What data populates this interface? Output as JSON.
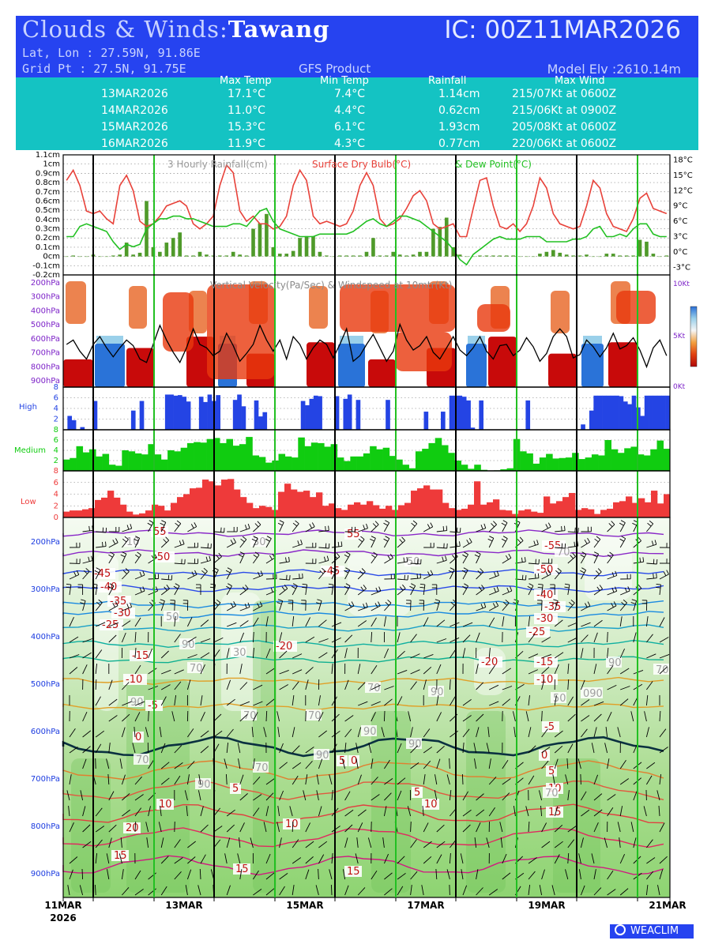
{
  "header": {
    "title_prefix": "Clouds & Winds:",
    "location": "Tawang",
    "initial_condition": "IC: 00Z11MAR2026",
    "latlon": "Lat, Lon : 27.59N, 91.86E",
    "gridpt": "Grid Pt  : 27.5N, 91.75E",
    "product": "GFS Product",
    "model_elevation": "Model Elv :2610.14m"
  },
  "summary": {
    "headers": [
      "Max Temp",
      "Min Temp",
      "Rainfall",
      "Max Wind"
    ],
    "rows": [
      {
        "date": "13MAR2026",
        "max_temp": "17.1°C",
        "min_temp": "7.4°C",
        "rain": "1.14cm",
        "wind": "215/07Kt at 0600Z"
      },
      {
        "date": "14MAR2026",
        "max_temp": "11.0°C",
        "min_temp": "4.4°C",
        "rain": "0.62cm",
        "wind": "215/06Kt at 0900Z"
      },
      {
        "date": "15MAR2026",
        "max_temp": "15.3°C",
        "min_temp": "6.1°C",
        "rain": "1.93cm",
        "wind": "205/08Kt at 0600Z"
      },
      {
        "date": "16MAR2026",
        "max_temp": "11.9°C",
        "min_temp": "4.3°C",
        "rain": "0.77cm",
        "wind": "220/06Kt at 0600Z"
      }
    ]
  },
  "colors": {
    "header_bg": "#2643f0",
    "summary_bg": "#14c3c3",
    "rain_bar": "#4f9a2a",
    "dry_bulb": "#e8423a",
    "dew_point": "#22c022",
    "high": "#2444e4",
    "medium": "#10cc10",
    "low": "#ee3a3a",
    "grid_day": "#000000",
    "grid_noon": "#22c022"
  },
  "chart_data": [
    {
      "type": "bar",
      "title": "3 Hourly Rainfall(cm)",
      "series_titles": [
        "Surface Dry Bulb(°C)",
        "& Dew Point(°C)"
      ],
      "yleft_ticks": [
        "1.1cm",
        "1cm",
        "0.9cm",
        "0.8cm",
        "0.7cm",
        "0.6cm",
        "0.5cm",
        "0.4cm",
        "0.3cm",
        "0.2cm",
        "0.1cm",
        "0cm",
        "-0.1cm",
        "-0.2cm"
      ],
      "yright_ticks": [
        "18°C",
        "15°C",
        "12°C",
        "9°C",
        "6°C",
        "3°C",
        "0°C",
        "-3°C"
      ],
      "ylim_rain": [
        -0.2,
        1.1
      ],
      "ylim_temp": [
        -4.5,
        19
      ],
      "rain": [
        0,
        0.01,
        0,
        0,
        0.02,
        0,
        0,
        0.01,
        0.02,
        0.15,
        0.02,
        0.04,
        0.6,
        0.1,
        0.05,
        0.15,
        0.2,
        0.26,
        0.01,
        0.01,
        0.05,
        0.02,
        0.01,
        0.01,
        0.01,
        0.05,
        0.02,
        0.01,
        0.3,
        0.36,
        0.46,
        0.1,
        0.03,
        0.03,
        0.06,
        0.2,
        0.22,
        0.22,
        0.05,
        0.01,
        0,
        0.01,
        0.01,
        0.01,
        0.01,
        0.05,
        0.2,
        0.01,
        0.01,
        0.05,
        0.02,
        0.01,
        0.02,
        0.05,
        0.05,
        0.3,
        0.32,
        0.42,
        0.1,
        0.02,
        0,
        0,
        0.01,
        0.01,
        0.01,
        0.01,
        0.01,
        0.01,
        0,
        0,
        0,
        0.03,
        0.05,
        0.07,
        0.04,
        0.02,
        0.01,
        0.01,
        0.02,
        0,
        0,
        0.03,
        0.03,
        0.01,
        0.01,
        0.01,
        0.18,
        0.16,
        0.03,
        0,
        0.01
      ],
      "dry_bulb": [
        14,
        16,
        13,
        8,
        7.5,
        8,
        6.5,
        5.5,
        13,
        15,
        12,
        6,
        5,
        5.5,
        7,
        9,
        9.5,
        10,
        9,
        5.5,
        4.5,
        5.5,
        7,
        13,
        17,
        15.5,
        8,
        6,
        7,
        5.5,
        5.5,
        4.5,
        5,
        7,
        13,
        16,
        14,
        7,
        5.5,
        6,
        5.5,
        5,
        5.5,
        8,
        13,
        15.5,
        13,
        6.5,
        5,
        5.5,
        6.5,
        8.5,
        11,
        12,
        10,
        5.5,
        4.5,
        5,
        5.5,
        3,
        3,
        8.5,
        14,
        14.5,
        9,
        5,
        4.5,
        5.5,
        4,
        5.5,
        9,
        14.5,
        12.5,
        7.5,
        5.5,
        5,
        4.5,
        5,
        9,
        14,
        12.5,
        7.5,
        5,
        4.5,
        4,
        6.5,
        10.5,
        11.5,
        8.5,
        8,
        7.5
      ],
      "dew_point": [
        3,
        3,
        5,
        5.5,
        5,
        4.5,
        4,
        2,
        0.5,
        1.5,
        1,
        1.5,
        4.5,
        5.5,
        6.5,
        6.5,
        7,
        7,
        6.5,
        6.5,
        6,
        5.5,
        5,
        5,
        5,
        5.5,
        5.5,
        5,
        6.5,
        8,
        8.5,
        6,
        4.5,
        4,
        3.5,
        3,
        3,
        3,
        3.5,
        3.5,
        3.5,
        3.5,
        3.5,
        4,
        5,
        6,
        6.5,
        5.5,
        5,
        6,
        7,
        7,
        6.5,
        6,
        5,
        4,
        3,
        2,
        0.5,
        -1.5,
        -2.5,
        -0.5,
        0.5,
        1.5,
        2.5,
        3,
        2.5,
        2.5,
        2.5,
        3,
        3,
        3,
        2,
        2,
        2,
        2,
        2.5,
        2.5,
        3,
        4.5,
        5,
        3,
        3,
        3.5,
        3,
        4.5,
        5.5,
        5.5,
        3.5,
        3,
        3
      ]
    },
    {
      "type": "heatmap",
      "title": "Vertical Velocity(Pa/Sec) & Windspeed at 10mtr(Kt)",
      "y_ticks": [
        "200hPa",
        "300hPa",
        "400hPa",
        "500hPa",
        "600hPa",
        "700hPa",
        "800hPa",
        "900hPa"
      ],
      "yright_ticks": [
        "10Kt",
        "5Kt",
        "0Kt"
      ],
      "windspeed_kt": [
        3.8,
        4.2,
        3.2,
        2.5,
        3.8,
        4.5,
        3.5,
        2.7,
        3.5,
        4.2,
        3.7,
        2.5,
        2.2,
        3.8,
        5.5,
        4.2,
        3.1,
        2.2,
        3.5,
        5.2,
        3.8,
        3.5,
        2.8,
        3.2,
        4.8,
        3.7,
        2.3,
        3,
        3.8,
        5.5,
        4.2,
        3.2,
        4.2,
        2.5,
        4.5,
        3.8,
        2.5,
        3.5,
        4.2,
        3.8,
        2.6,
        3.8,
        5.2,
        2.3,
        2.8,
        3.8,
        4.7,
        3.5,
        2.3,
        3.2,
        5.6,
        4.2,
        3.3,
        3.7,
        4.5,
        3.1,
        2.5,
        3.5,
        4.5,
        3.3,
        2.8,
        3.5,
        4.5,
        3.2,
        2.5,
        3.7,
        3.8,
        2.8,
        3.3,
        4.4,
        3.6,
        2.3,
        3,
        4.5,
        5.2,
        4.5,
        2.6,
        2.9,
        4.2,
        3.6,
        2.7,
        3.5,
        4.8,
        3.4,
        3.7,
        4.4,
        3.3,
        1.8,
        3.5,
        4.2,
        2.8
      ]
    },
    {
      "type": "bar",
      "title": "High",
      "ylim": [
        0,
        8
      ],
      "y_ticks": [
        "8",
        "6",
        "4",
        "2"
      ],
      "values": [
        0,
        2.6,
        1.8,
        0,
        0.5,
        0,
        0,
        5.4,
        0,
        0,
        0,
        0,
        0,
        0,
        0,
        0,
        3.6,
        0,
        5.4,
        0,
        0,
        0,
        0,
        0,
        6.6,
        6.6,
        6.4,
        6.5,
        6.2,
        5.3,
        0,
        0,
        6.2,
        5.2,
        6.6,
        5.4,
        6.5,
        0,
        0,
        0,
        5.6,
        6.6,
        4.4,
        0,
        0,
        5.5,
        2.5,
        3.3,
        0,
        0,
        0,
        0,
        0,
        0,
        0,
        0,
        5.4,
        4.6,
        5.8,
        6.4,
        6.3,
        0,
        0,
        0,
        6.3,
        0,
        5.8,
        6.6,
        0,
        5.6,
        0,
        0,
        0,
        0,
        0,
        0,
        5.6,
        0,
        0,
        0,
        0,
        0,
        0,
        0,
        0,
        3.4,
        0,
        0,
        0,
        3.4,
        0,
        6.4,
        6.4,
        6.4,
        6.2,
        5.5,
        0.4,
        0,
        5.5,
        0,
        0,
        0,
        0,
        0,
        0,
        0,
        0,
        0,
        0,
        5.5,
        0,
        0,
        0,
        0,
        0,
        0,
        0,
        0,
        0,
        0,
        0,
        0,
        1,
        0,
        3.6,
        6.4,
        6.4,
        6.4,
        6.4,
        6.4,
        6.4,
        6.3,
        5.3,
        4.8,
        6.4,
        4.2,
        2.6,
        6.4,
        6.4,
        6.4,
        6.4,
        6.4,
        6.4
      ]
    },
    {
      "type": "bar",
      "title": "Medium",
      "ylim": [
        0,
        8
      ],
      "y_ticks": [
        "8",
        "6",
        "4",
        "2"
      ],
      "values": [
        2.2,
        2.5,
        4.8,
        3.6,
        4.2,
        2.8,
        3.3,
        1.2,
        1,
        4,
        3.8,
        3.4,
        3.2,
        5.2,
        3.2,
        2.2,
        4,
        3.8,
        4.5,
        5.4,
        5.6,
        5.5,
        6.2,
        6.4,
        5.4,
        6.2,
        4.9,
        5.2,
        6.6,
        3,
        2.7,
        1.6,
        2,
        3.3,
        2.8,
        2.6,
        6.5,
        4.8,
        5.5,
        5.4,
        4.7,
        5.2,
        2.6,
        1.9,
        2.8,
        2.8,
        3.4,
        4.8,
        4.2,
        4.5,
        2.9,
        2.2,
        1.2,
        0.5,
        3.8,
        4.3,
        5.4,
        6.4,
        5,
        3.5,
        2,
        1.2,
        0.4,
        1.2,
        0.2,
        0,
        0.1,
        0.3,
        0.5,
        6.2,
        3.8,
        3.4,
        1.4,
        2.6,
        3.3,
        2.4,
        2.5,
        2.6,
        3.5,
        2.3,
        2.6,
        3.2,
        3,
        6,
        4.2,
        3.5,
        4.4,
        4.7,
        3.2,
        3,
        4.2,
        5.9,
        4.3
      ]
    },
    {
      "type": "bar",
      "title": "Low",
      "ylim": [
        0,
        8
      ],
      "y_ticks": [
        "8",
        "6",
        "4",
        "2",
        "0"
      ],
      "values": [
        1,
        1.2,
        1.2,
        1.4,
        1.6,
        3,
        3.4,
        4.6,
        3.4,
        2.2,
        1,
        0.5,
        0.7,
        1.2,
        2.2,
        2,
        1.2,
        2.5,
        3.5,
        4,
        5,
        5.1,
        6.5,
        6.2,
        5.5,
        6.5,
        6.6,
        4.8,
        3.5,
        2.5,
        1.6,
        2,
        1.8,
        1.3,
        4.4,
        5.8,
        4.8,
        4.4,
        4.6,
        3.5,
        4.3,
        2,
        2.4,
        1.6,
        1.3,
        2.2,
        2.6,
        2.2,
        2.8,
        2.1,
        1.5,
        2,
        1.3,
        2.1,
        2.5,
        4.6,
        5,
        5.5,
        4.8,
        4.8,
        2.5,
        1.6,
        1.3,
        1.5,
        2.2,
        6.2,
        2.2,
        2.6,
        3.1,
        1.3,
        1.2,
        0.6,
        1.2,
        1.4,
        1,
        0.8,
        3.6,
        2.4,
        2.8,
        3.5,
        4.2,
        1.3,
        1.6,
        1.4,
        0.6,
        1.3,
        1.5,
        2.6,
        2.8,
        3.6,
        2.5,
        3.3,
        2.6,
        4.6,
        2.4,
        4
      ]
    },
    {
      "type": "contour",
      "title": "Relative Humidity, Temperature(°C) & Winds",
      "y_ticks": [
        "200hPa",
        "300hPa",
        "400hPa",
        "500hPa",
        "600hPa",
        "700hPa",
        "800hPa",
        "900hPa"
      ],
      "x_ticks": [
        "11MAR",
        "13MAR",
        "15MAR",
        "17MAR",
        "19MAR",
        "21MAR"
      ],
      "x_year": "2026",
      "temperature_labels_degC": [
        "55",
        "50",
        "45",
        "40",
        "35",
        "30",
        "25",
        "20",
        "15",
        "10",
        "5",
        "0",
        "-5",
        "-10",
        "-15",
        "-20",
        "-25",
        "-30",
        "-35",
        "-40",
        "-45",
        "-50",
        "-55"
      ],
      "rh_labels_pct": [
        "10",
        "30",
        "50",
        "70",
        "90"
      ]
    }
  ],
  "footer": {
    "logo": "WEACLIM"
  }
}
